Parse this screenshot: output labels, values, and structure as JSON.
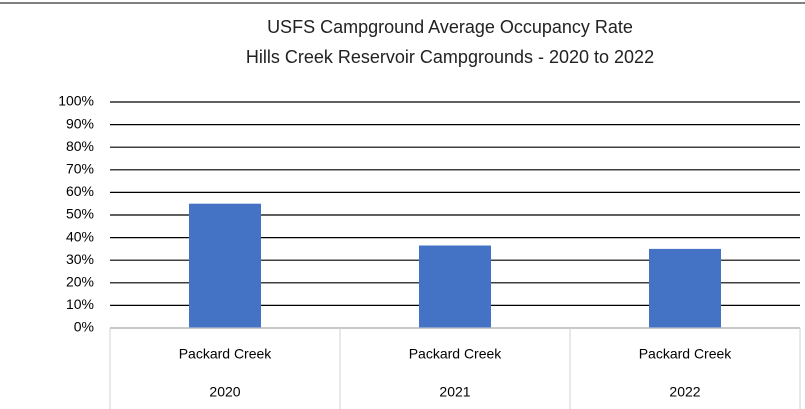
{
  "chart_data": {
    "type": "bar",
    "title": "USFS Campground Average Occupancy Rate",
    "subtitle": "Hills Creek Reservoir Campgrounds - 2020 to 2022",
    "categories": [
      [
        "Packard Creek",
        "2020"
      ],
      [
        "Packard Creek",
        "2021"
      ],
      [
        "Packard Creek",
        "2022"
      ]
    ],
    "values": [
      55,
      36.5,
      35
    ],
    "color": "#4472c4",
    "ylim": [
      0,
      100
    ],
    "yticks": [
      {
        "value": 0,
        "label": "0%"
      },
      {
        "value": 10,
        "label": "10%"
      },
      {
        "value": 20,
        "label": "20%"
      },
      {
        "value": 30,
        "label": "30%"
      },
      {
        "value": 40,
        "label": "40%"
      },
      {
        "value": 50,
        "label": "50%"
      },
      {
        "value": 60,
        "label": "60%"
      },
      {
        "value": 70,
        "label": "70%"
      },
      {
        "value": 80,
        "label": "80%"
      },
      {
        "value": 90,
        "label": "90%"
      },
      {
        "value": 100,
        "label": "100%"
      }
    ],
    "grid": true
  }
}
